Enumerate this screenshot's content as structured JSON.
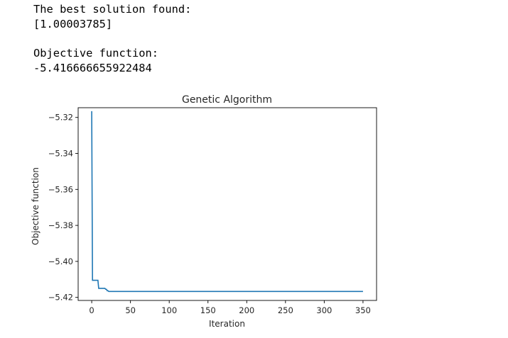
{
  "output": {
    "solution_label": "The best solution found:",
    "solution_value": "[1.00003785]",
    "objective_label": "Objective function:",
    "objective_value": "-5.416666655922484"
  },
  "chart_data": {
    "type": "line",
    "title": "Genetic Algorithm",
    "xlabel": "Iteration",
    "ylabel": "Objective function",
    "xlim": [
      -17.5,
      367.5
    ],
    "ylim": [
      -5.4217,
      -5.3146
    ],
    "xticks": [
      0,
      50,
      100,
      150,
      200,
      250,
      300,
      350
    ],
    "xtick_labels": [
      "0",
      "50",
      "100",
      "150",
      "200",
      "250",
      "300",
      "350"
    ],
    "yticks": [
      -5.42,
      -5.4,
      -5.38,
      -5.36,
      -5.34,
      -5.32
    ],
    "ytick_labels": [
      "−5.42",
      "−5.40",
      "−5.38",
      "−5.36",
      "−5.34",
      "−5.32"
    ],
    "grid": false,
    "series_color": "#1f77b4",
    "series": [
      {
        "x": [
          0,
          1,
          2,
          3,
          4,
          5,
          6,
          7,
          8,
          9,
          10,
          11,
          12,
          13,
          14,
          15,
          16,
          17,
          18,
          19,
          20,
          21,
          22,
          23,
          24,
          25,
          50,
          100,
          150,
          200,
          250,
          300,
          350
        ],
        "values": [
          -5.3165,
          -5.4105,
          -5.4105,
          -5.4105,
          -5.4105,
          -5.4105,
          -5.4105,
          -5.4105,
          -5.4105,
          -5.415,
          -5.415,
          -5.415,
          -5.415,
          -5.415,
          -5.415,
          -5.415,
          -5.415,
          -5.415,
          -5.4155,
          -5.4155,
          -5.4163,
          -5.4163,
          -5.4167,
          -5.4167,
          -5.4167,
          -5.4167,
          -5.4167,
          -5.4167,
          -5.4167,
          -5.4167,
          -5.4167,
          -5.4167,
          -5.4167
        ]
      }
    ]
  }
}
